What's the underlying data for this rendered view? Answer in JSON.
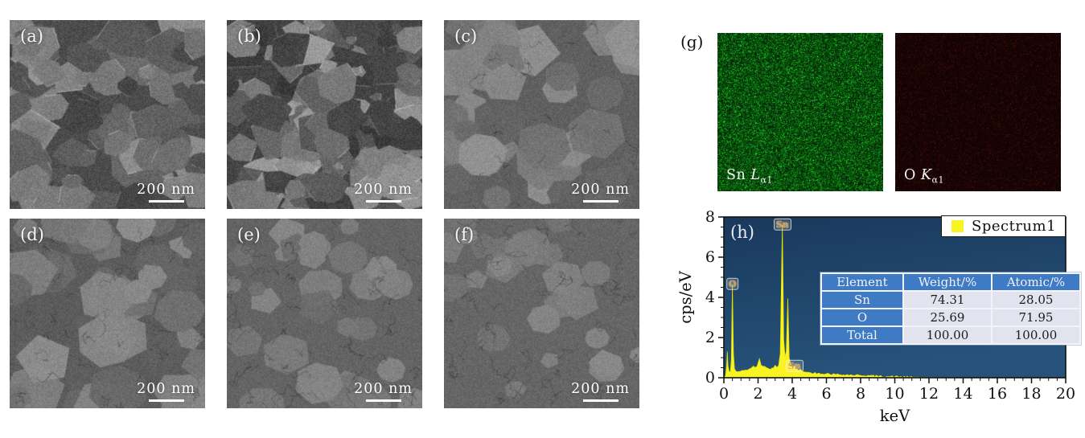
{
  "sem_panels": [
    {
      "label": "(a)",
      "scale_label": "200 nm",
      "texture": {
        "base": 96,
        "grains": 95,
        "rmin": 13,
        "rmax": 42,
        "jag": 0.45,
        "cmin": -32,
        "cmax": 58,
        "noise": 18,
        "facets": true,
        "cracks": 0
      }
    },
    {
      "label": "(b)",
      "scale_label": "200 nm",
      "texture": {
        "base": 88,
        "grains": 130,
        "rmin": 8,
        "rmax": 40,
        "jag": 0.55,
        "cmin": -36,
        "cmax": 72,
        "noise": 18,
        "facets": true,
        "cracks": 0
      }
    },
    {
      "label": "(c)",
      "scale_label": "200 nm",
      "texture": {
        "base": 116,
        "grains": 42,
        "rmin": 18,
        "rmax": 48,
        "jag": 0.15,
        "cmin": -18,
        "cmax": 30,
        "noise": 14,
        "facets": false,
        "cracks": 28
      }
    },
    {
      "label": "(d)",
      "scale_label": "200 nm",
      "texture": {
        "base": 112,
        "grains": 46,
        "rmin": 14,
        "rmax": 42,
        "jag": 0.15,
        "cmin": -16,
        "cmax": 32,
        "noise": 14,
        "facets": false,
        "cracks": 38
      }
    },
    {
      "label": "(e)",
      "scale_label": "200 nm",
      "texture": {
        "base": 120,
        "grains": 32,
        "rmin": 12,
        "rmax": 34,
        "jag": 0.1,
        "cmin": -12,
        "cmax": 22,
        "noise": 13,
        "facets": false,
        "cracks": 48
      }
    },
    {
      "label": "(f)",
      "scale_label": "200 nm",
      "texture": {
        "base": 122,
        "grains": 28,
        "rmin": 12,
        "rmax": 30,
        "jag": 0.1,
        "cmin": -10,
        "cmax": 18,
        "noise": 13,
        "facets": false,
        "cracks": 52
      }
    }
  ],
  "eds": {
    "label": "(g)",
    "maps": [
      {
        "element": "Sn",
        "line": "L",
        "sub": "α1",
        "type": "green"
      },
      {
        "element": "O",
        "line": "K",
        "sub": "α1",
        "type": "red"
      }
    ]
  },
  "chart_data": {
    "type": "area",
    "panel_label": "(h)",
    "xlabel": "keV",
    "ylabel": "cps/eV",
    "xlim": [
      0,
      20
    ],
    "ylim": [
      0,
      8
    ],
    "x_major_tick_step": 2,
    "y_major_tick_step": 2,
    "minor_tick_step": 0.5,
    "grid": false,
    "legend": {
      "label": "Spectrum1",
      "position": "top-right",
      "swatch_color": "#f9f421"
    },
    "colors": {
      "series": "#f9f421",
      "series_edge": "#e3df00",
      "plot_bg_top": "#19395c",
      "plot_bg_bottom": "#27527a",
      "axis": "#111111"
    },
    "series": [
      {
        "name": "Spectrum1",
        "points": [
          [
            0,
            0
          ],
          [
            0.1,
            0.1
          ],
          [
            0.16,
            0.6
          ],
          [
            0.2,
            1.3
          ],
          [
            0.24,
            0.6
          ],
          [
            0.3,
            0.32
          ],
          [
            0.38,
            0.3
          ],
          [
            0.44,
            0.9
          ],
          [
            0.5,
            4.65
          ],
          [
            0.56,
            1.2
          ],
          [
            0.62,
            0.45
          ],
          [
            0.72,
            0.3
          ],
          [
            0.85,
            0.3
          ],
          [
            1.0,
            0.33
          ],
          [
            1.15,
            0.35
          ],
          [
            1.3,
            0.38
          ],
          [
            1.45,
            0.42
          ],
          [
            1.6,
            0.48
          ],
          [
            1.72,
            0.58
          ],
          [
            1.82,
            0.52
          ],
          [
            1.95,
            0.58
          ],
          [
            2.08,
            0.95
          ],
          [
            2.18,
            0.62
          ],
          [
            2.3,
            0.56
          ],
          [
            2.45,
            0.52
          ],
          [
            2.6,
            0.46
          ],
          [
            2.75,
            0.43
          ],
          [
            2.9,
            0.48
          ],
          [
            3.0,
            0.62
          ],
          [
            3.1,
            0.52
          ],
          [
            3.2,
            0.6
          ],
          [
            3.3,
            1.2
          ],
          [
            3.42,
            7.6
          ],
          [
            3.5,
            1.9
          ],
          [
            3.58,
            1.05
          ],
          [
            3.65,
            1.3
          ],
          [
            3.74,
            3.95
          ],
          [
            3.82,
            1.0
          ],
          [
            3.92,
            0.6
          ],
          [
            4.02,
            0.5
          ],
          [
            4.12,
            0.58
          ],
          [
            4.22,
            0.45
          ],
          [
            4.35,
            0.38
          ],
          [
            4.5,
            0.42
          ],
          [
            4.65,
            0.3
          ],
          [
            4.85,
            0.27
          ],
          [
            5.1,
            0.24
          ],
          [
            5.5,
            0.22
          ],
          [
            6.0,
            0.2
          ],
          [
            6.5,
            0.17
          ],
          [
            7.0,
            0.15
          ],
          [
            7.5,
            0.13
          ],
          [
            8.0,
            0.12
          ],
          [
            8.5,
            0.1
          ],
          [
            9.0,
            0.08
          ],
          [
            9.6,
            0.06
          ],
          [
            10.2,
            0.05
          ],
          [
            10.8,
            0.03
          ],
          [
            11.4,
            0.02
          ],
          [
            12.0,
            0.015
          ],
          [
            13,
            0.01
          ],
          [
            14,
            0.005
          ],
          [
            15,
            0.004
          ],
          [
            16,
            0.003
          ],
          [
            17,
            0.002
          ],
          [
            18,
            0.002
          ],
          [
            19,
            0.001
          ],
          [
            20,
            0
          ]
        ]
      }
    ],
    "peak_labels": [
      {
        "text": "O",
        "kev": 0.5,
        "value": 4.65
      },
      {
        "text": "Sn",
        "kev": 3.42,
        "value": 7.6
      },
      {
        "text": "Sn",
        "kev": 4.12,
        "value": 0.58
      }
    ],
    "inset_table": {
      "headers": [
        "Element",
        "Weight/%",
        "Atomic/%"
      ],
      "rows": [
        [
          "Sn",
          "74.31",
          "28.05"
        ],
        [
          "O",
          "25.69",
          "71.95"
        ],
        [
          "Total",
          "100.00",
          "100.00"
        ]
      ]
    }
  }
}
